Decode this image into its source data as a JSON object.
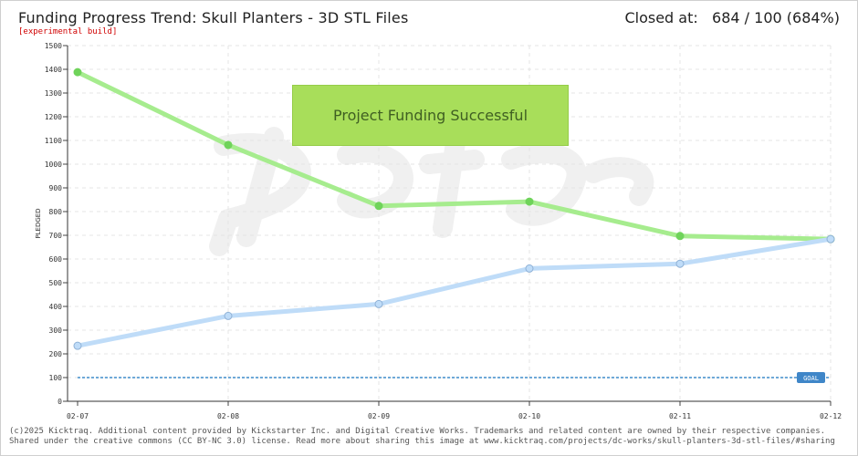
{
  "header": {
    "title": "Funding Progress Trend: Skull Planters - 3D STL Files",
    "build_note": "[experimental build]",
    "closed_label": "Closed at:",
    "closed_value": "684 / 100 (684%)"
  },
  "banner": {
    "text": "Project Funding Successful"
  },
  "footer": {
    "line1": "(c)2025 Kicktraq. Additional content provided by Kickstarter Inc. and Digital Creative Works. Trademarks and related content are owned by their respective companies.",
    "line2": "Shared under the creative commons (CC BY-NC 3.0) license. Read more about sharing this image at www.kicktraq.com/projects/dc-works/skull-planters-3d-stl-files/#sharing"
  },
  "colors": {
    "projected": "#a6ec8e",
    "projected_point": "#6fd35a",
    "pledged": "#bfdcf8",
    "pledged_point": "#b8d6f2",
    "goal": "#6fa9d8",
    "goal_badge": "#3f86c8"
  },
  "chart_data": {
    "type": "line",
    "categories": [
      "02-07",
      "02-08",
      "02-09",
      "02-10",
      "02-11",
      "02-12"
    ],
    "ylabel": "PLEDGED",
    "ylim": [
      0,
      1500
    ],
    "yticks": [
      0,
      100,
      200,
      300,
      400,
      500,
      600,
      700,
      800,
      900,
      1000,
      1100,
      1200,
      1300,
      1400,
      1500
    ],
    "grid": true,
    "series": [
      {
        "key": "projected",
        "values": [
          1388,
          1081,
          824,
          842,
          697,
          684
        ]
      },
      {
        "key": "pledged",
        "values": [
          234,
          360,
          410,
          560,
          580,
          684
        ]
      }
    ],
    "goal": {
      "value": 100,
      "label": "GOAL"
    }
  }
}
